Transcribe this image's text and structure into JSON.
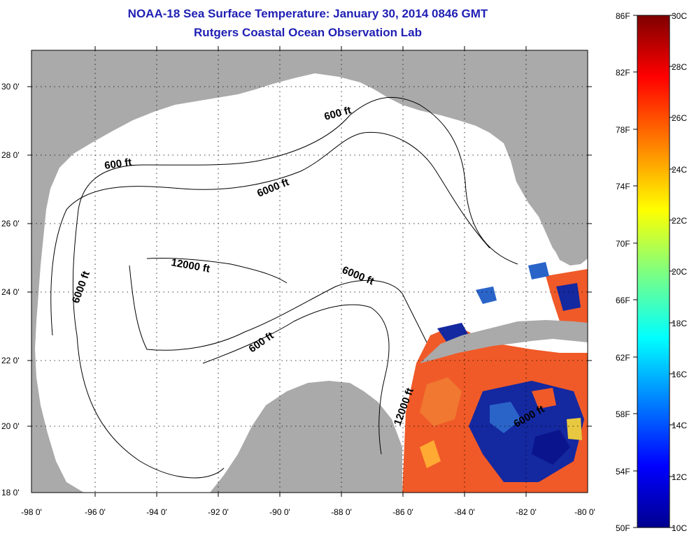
{
  "title": {
    "line1": "NOAA-18 Sea Surface Temperature:  January 30, 2014 0846 GMT",
    "line2": "Rutgers Coastal Ocean Observation Lab"
  },
  "axes": {
    "lat_labels": [
      "30 0'",
      "28 0'",
      "26 0'",
      "24 0'",
      "22 0'",
      "20 0'",
      "18 0'"
    ],
    "lon_labels": [
      "-98 0'",
      "-96 0'",
      "-94 0'",
      "-92 0'",
      "-90 0'",
      "-88 0'",
      "-86 0'",
      "-84 0'",
      "-82 0'",
      "-80 0'"
    ]
  },
  "contours": {
    "label_600_a": "600 ft",
    "label_600_b": "600 ft",
    "label_600_c": "600 ft",
    "label_6000_a": "6000 ft",
    "label_6000_b": "6000 ft",
    "label_6000_c": "6000 ft",
    "label_6000_d": "6000 ft",
    "label_12000_a": "12000 ft",
    "label_12000_b": "12000 ft"
  },
  "colorbar": {
    "fahrenheit": [
      "86F",
      "82F",
      "78F",
      "74F",
      "70F",
      "66F",
      "62F",
      "58F",
      "54F",
      "50F"
    ],
    "celsius": [
      "30C",
      "28C",
      "26C",
      "24C",
      "22C",
      "20C",
      "18C",
      "16C",
      "14C",
      "12C",
      "10C"
    ],
    "colors": [
      "#7f0000",
      "#ff0000",
      "#ff7f00",
      "#ffff00",
      "#7fff7f",
      "#00ffff",
      "#007fff",
      "#0000ff",
      "#00008f"
    ]
  },
  "colors": {
    "land": "#aaaaaa",
    "title": "#1f1fb4",
    "sst_warm": "#f05a28",
    "sst_cool": "#1428a0"
  }
}
